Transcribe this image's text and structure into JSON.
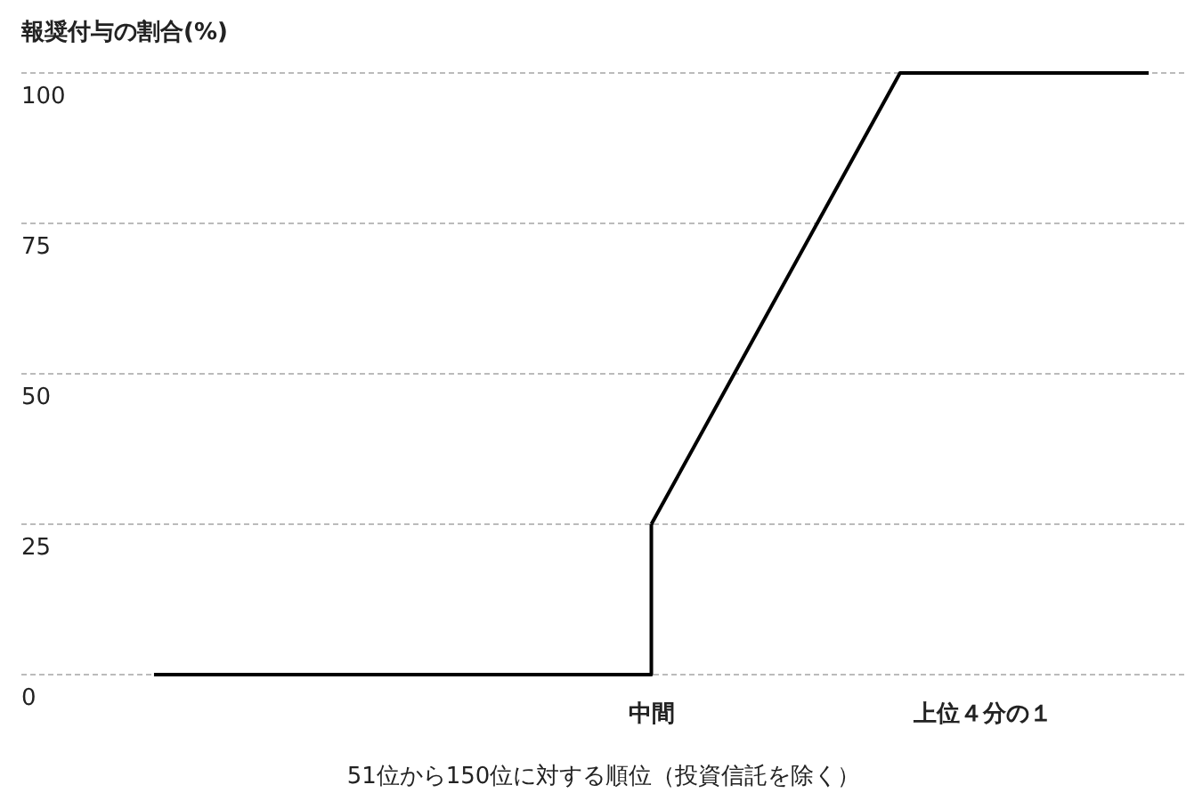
{
  "chart_data": {
    "type": "line",
    "title": "報奨付与の割合(%)",
    "xlabel": "51位から150位に対する順位（投資信託を除く）",
    "categories": [
      null,
      null,
      null,
      null,
      null,
      null,
      "中間",
      null,
      null,
      null,
      "上位４分の１",
      null,
      null
    ],
    "series": [
      {
        "type": "step",
        "color": "#000000",
        "values": [
          0,
          0,
          0,
          0,
          0,
          0,
          25,
          null,
          null,
          null,
          null,
          null,
          null
        ]
      },
      {
        "color": "#000000",
        "values": [
          null,
          null,
          null,
          null,
          null,
          null,
          25,
          50,
          75,
          100,
          100,
          100,
          100
        ]
      }
    ],
    "ylim": [
      0,
      100
    ],
    "yticks": [
      0,
      25,
      50,
      75,
      100
    ],
    "grid": "y",
    "line_style": "solid",
    "marker": "none"
  }
}
